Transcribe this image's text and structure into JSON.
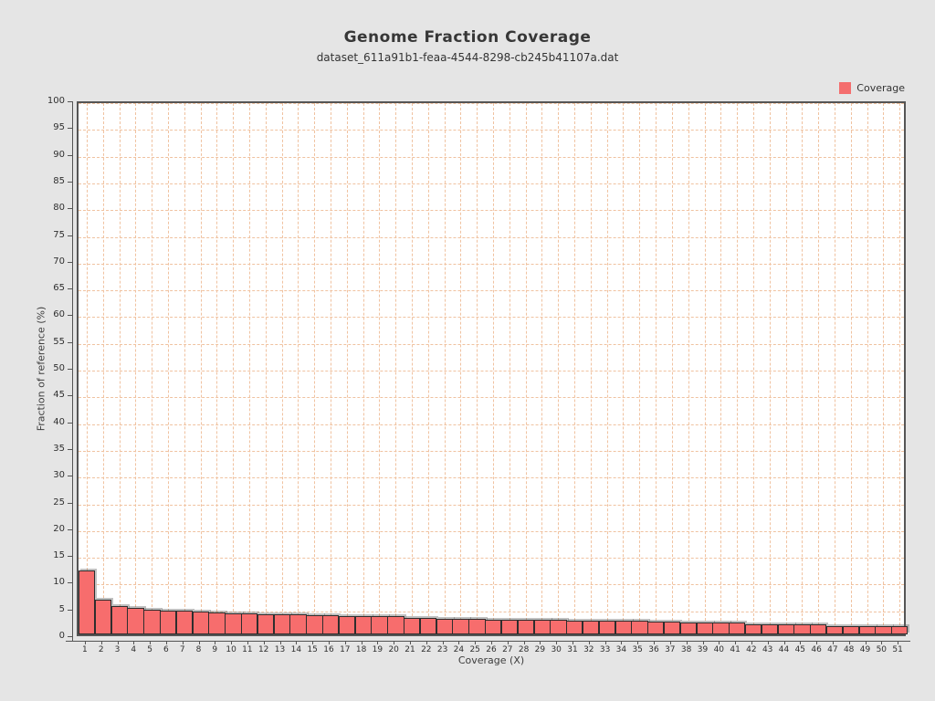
{
  "page": {
    "background_color": "#e5e5e5"
  },
  "legend": {
    "label": "Coverage",
    "position": "top-right",
    "swatch_color": "#f46e6e"
  },
  "chart_data": {
    "type": "bar",
    "title": "Genome Fraction Coverage",
    "subtitle": "dataset_611a91b1-feaa-4544-8298-cb245b41107a.dat",
    "xlabel": "Coverage (X)",
    "ylabel": "Fraction of reference (%)",
    "ylim": [
      0,
      100
    ],
    "y_ticks": [
      0,
      5,
      10,
      15,
      20,
      25,
      30,
      35,
      40,
      45,
      50,
      55,
      60,
      65,
      70,
      75,
      80,
      85,
      90,
      95,
      100
    ],
    "categories": [
      1,
      2,
      3,
      4,
      5,
      6,
      7,
      8,
      9,
      10,
      11,
      12,
      13,
      14,
      15,
      16,
      17,
      18,
      19,
      20,
      21,
      22,
      23,
      24,
      25,
      26,
      27,
      28,
      29,
      30,
      31,
      32,
      33,
      34,
      35,
      36,
      37,
      38,
      39,
      40,
      41,
      42,
      43,
      44,
      45,
      46,
      47,
      48,
      49,
      50,
      51
    ],
    "series": [
      {
        "name": "Coverage",
        "color": "#f76d6d",
        "values": [
          12.0,
          6.5,
          5.3,
          5.0,
          4.7,
          4.5,
          4.4,
          4.2,
          4.1,
          4.0,
          3.9,
          3.8,
          3.8,
          3.7,
          3.6,
          3.6,
          3.5,
          3.5,
          3.4,
          3.4,
          3.1,
          3.1,
          2.9,
          2.9,
          2.9,
          2.8,
          2.8,
          2.7,
          2.7,
          2.7,
          2.6,
          2.6,
          2.6,
          2.5,
          2.5,
          2.4,
          2.4,
          2.3,
          2.2,
          2.2,
          2.2,
          1.9,
          1.9,
          1.9,
          1.9,
          1.9,
          1.6,
          1.6,
          1.6,
          1.6,
          1.6
        ]
      }
    ],
    "grid": {
      "on": true,
      "style": "dashed",
      "color": "#f0c2a0"
    },
    "plot_background": "#ffffff",
    "plot_border_color": "#555555",
    "bar_border_color": "#2e2e2e",
    "legend_position": "top-right"
  }
}
